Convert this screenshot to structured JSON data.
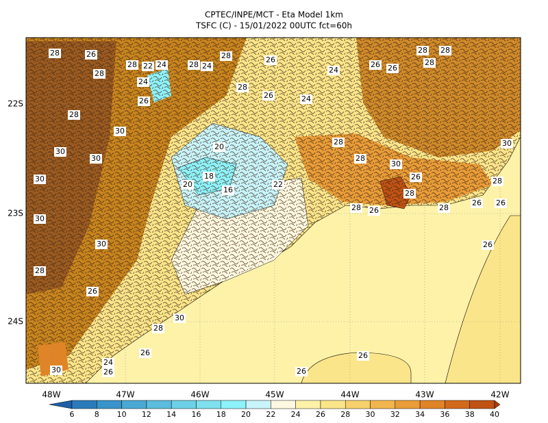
{
  "title": [
    "CPTEC/INPE/MCT -  Eta Model 1km",
    "TSFC (C) - 15/01/2022 00UTC fct=60h"
  ],
  "longitude_labels": [
    "48W",
    "47W",
    "46W",
    "45W",
    "44W",
    "43W",
    "42W"
  ],
  "latitude_labels": [
    "22S",
    "23S",
    "24S"
  ],
  "colorbar": {
    "ticks": [
      6,
      8,
      10,
      12,
      14,
      16,
      18,
      20,
      22,
      24,
      26,
      28,
      30,
      32,
      34,
      36,
      38,
      40
    ],
    "colors": [
      "#1f5fa8",
      "#2b7bba",
      "#3a94c9",
      "#4aa9d4",
      "#5bbcdc",
      "#6dd0e6",
      "#7fe0ee",
      "#8ef2fa",
      "#c8f4fa",
      "#fff8e0",
      "#fdf2a8",
      "#fbe58a",
      "#f6d06a",
      "#f0b64e",
      "#e99c38",
      "#e08428",
      "#d26a1c",
      "#bf5214",
      "#a63e0c"
    ]
  },
  "contour_labels": [
    "28",
    "26",
    "28",
    "28",
    "22",
    "24",
    "28",
    "24",
    "28",
    "26",
    "24",
    "26",
    "26",
    "28",
    "28",
    "28",
    "24",
    "26",
    "28",
    "26",
    "24",
    "28",
    "30",
    "30",
    "30",
    "30",
    "20",
    "18",
    "20",
    "16",
    "22",
    "28",
    "28",
    "30",
    "26",
    "28",
    "30",
    "28",
    "28",
    "26",
    "28",
    "26",
    "26",
    "26",
    "30",
    "30",
    "28",
    "26",
    "30",
    "28",
    "26",
    "26",
    "24",
    "26",
    "26",
    "30"
  ]
}
